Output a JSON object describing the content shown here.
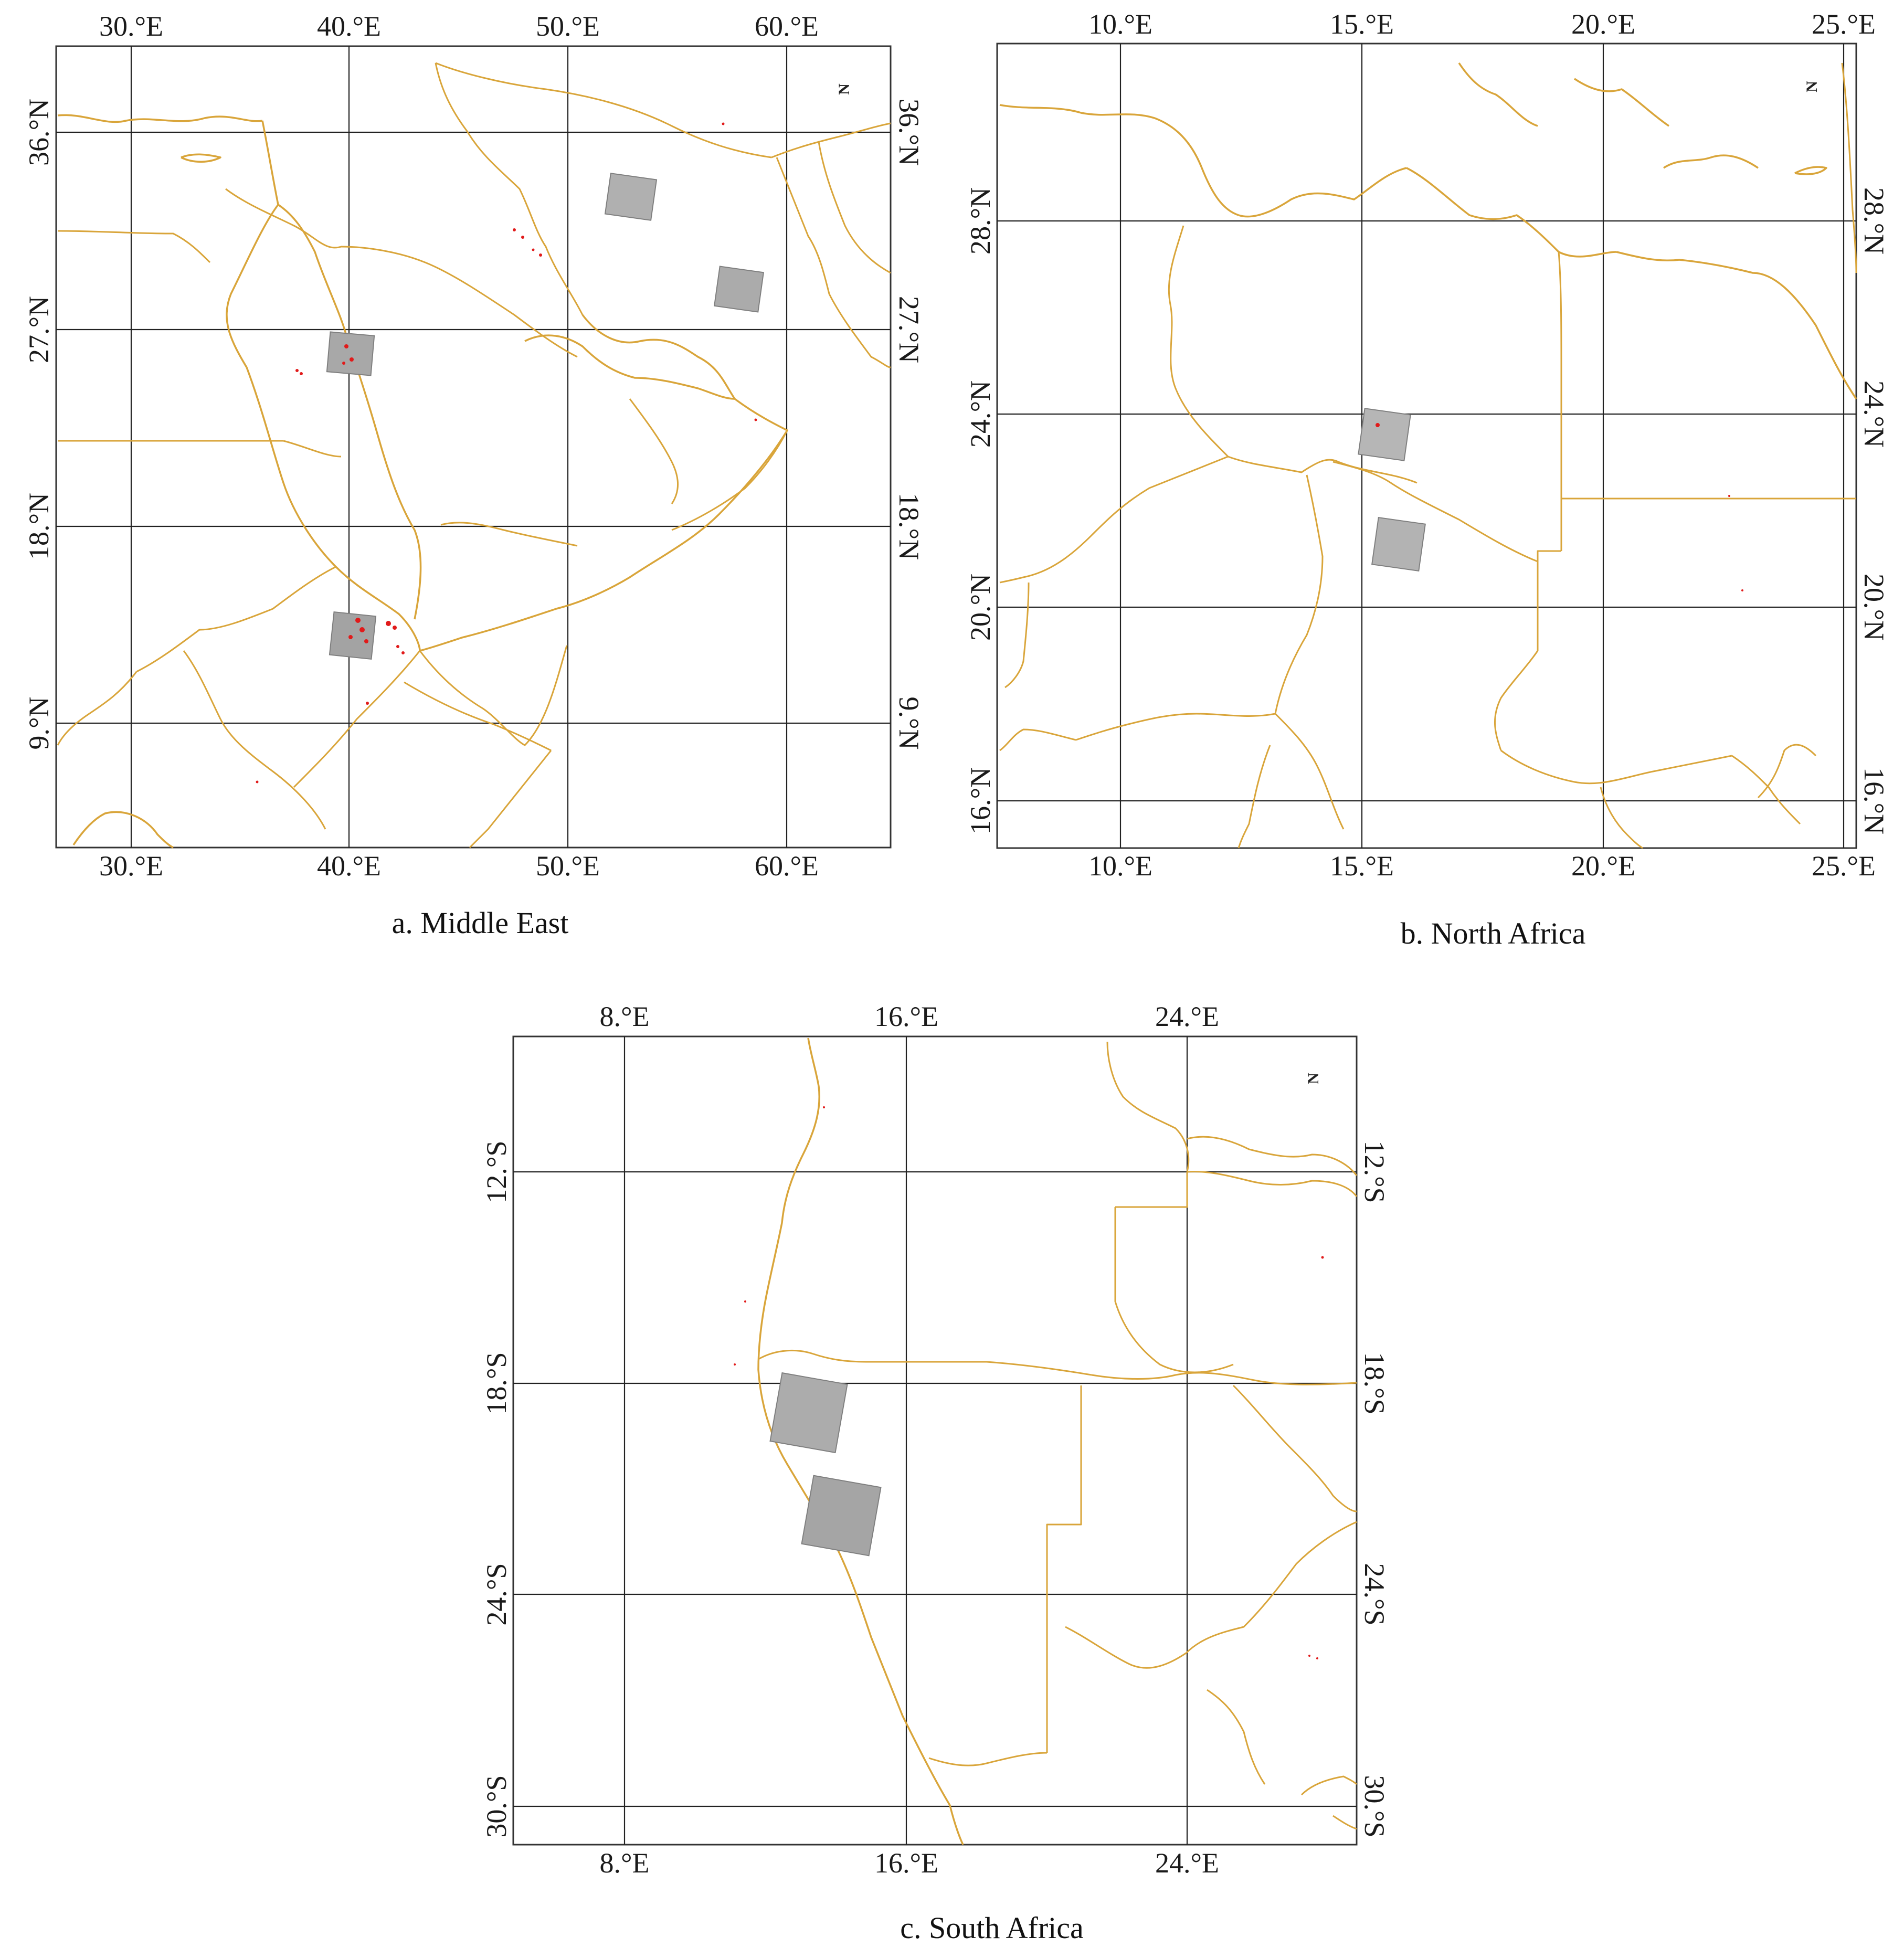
{
  "panels": [
    {
      "id": "middle-east",
      "caption": "a. Middle East",
      "x_ticks": [
        "30.°E",
        "40.°E",
        "50.°E",
        "60.°E"
      ],
      "y_ticks": [
        "36.°N",
        "27.°N",
        "18.°N",
        "9.°N"
      ],
      "north_arrow": "N"
    },
    {
      "id": "north-africa",
      "caption": "b. North Africa",
      "x_ticks": [
        "10.°E",
        "15.°E",
        "20.°E",
        "25.°E"
      ],
      "y_ticks": [
        "28.°N",
        "24.°N",
        "20.°N",
        "16.°N"
      ],
      "north_arrow": "N"
    },
    {
      "id": "south-africa",
      "caption": "c. South Africa",
      "x_ticks": [
        "8.°E",
        "16.°E",
        "24.°E"
      ],
      "y_ticks": [
        "12.°S",
        "18.°S",
        "24.°S",
        "30.°S"
      ],
      "north_arrow": "N"
    }
  ],
  "colors": {
    "border": "#d9a53a",
    "grid": "#222222",
    "tile": "#a9a9a9",
    "fire": "#e11a1a"
  }
}
